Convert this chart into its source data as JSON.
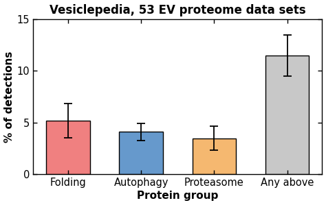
{
  "title": "Vesiclepedia, 53 EV proteome data sets",
  "xlabel": "Protein group",
  "ylabel": "% of detections",
  "categories": [
    "Folding",
    "Autophagy",
    "Proteasome",
    "Any above"
  ],
  "values": [
    5.2,
    4.1,
    3.5,
    11.5
  ],
  "errors": [
    1.65,
    0.85,
    1.15,
    2.0
  ],
  "bar_colors": [
    "#F08080",
    "#6699CC",
    "#F5B870",
    "#C8C8C8"
  ],
  "bar_edge_color": "#000000",
  "ylim": [
    0,
    15
  ],
  "yticks": [
    0,
    5,
    10,
    15
  ],
  "bar_width": 0.6,
  "background_color": "#ffffff",
  "title_fontsize": 12,
  "axis_label_fontsize": 11,
  "tick_fontsize": 10.5,
  "error_capsize": 4,
  "error_linewidth": 1.3
}
